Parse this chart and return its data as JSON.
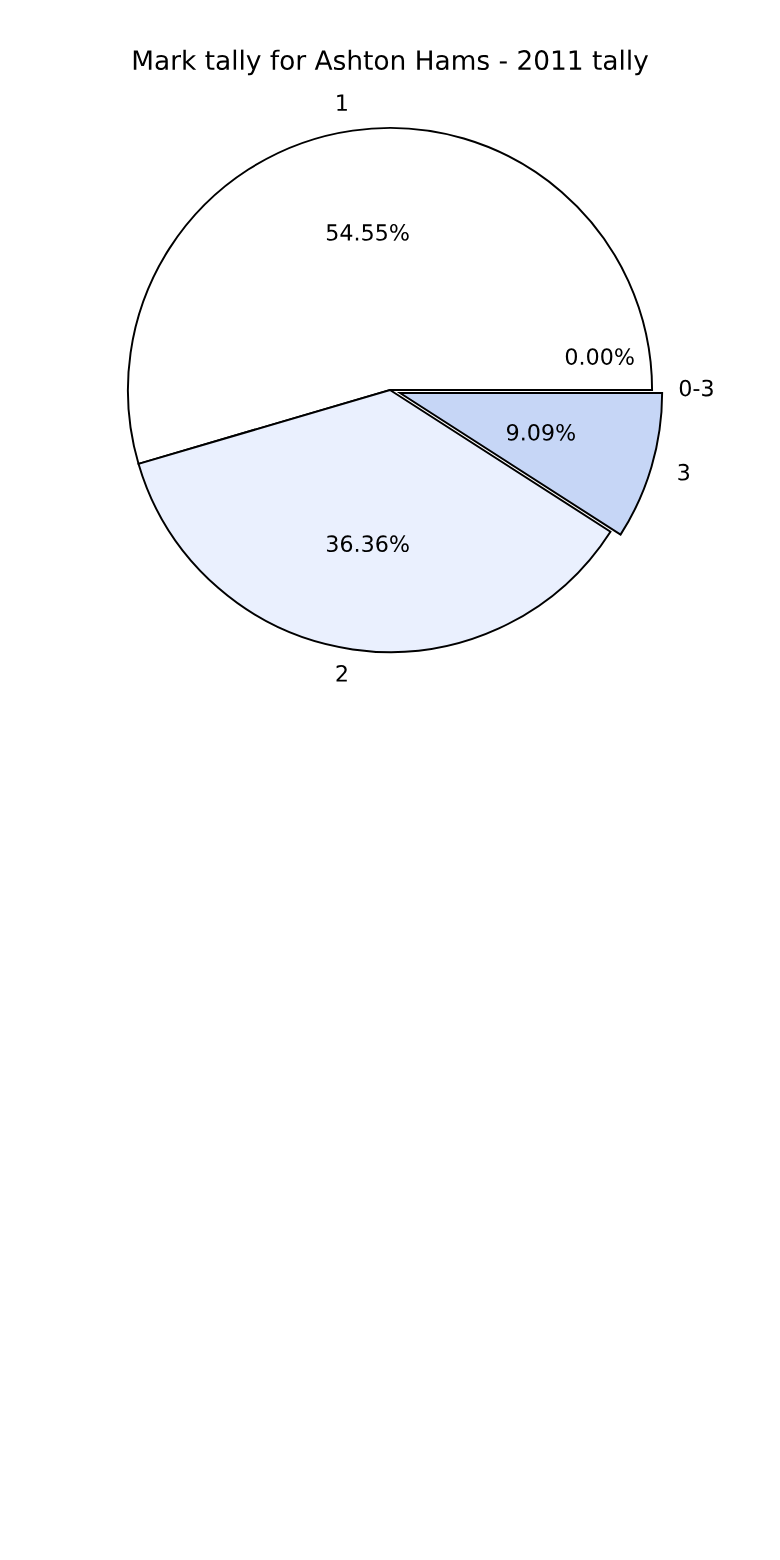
{
  "chart_data": {
    "type": "pie",
    "title": "Mark tally for Ashton Hams - 2011 tally",
    "categories": [
      "0-3",
      "1",
      "2",
      "3"
    ],
    "values": [
      0,
      54.55,
      36.36,
      9.09
    ],
    "value_labels": [
      "0.00%",
      "54.55%",
      "36.36%",
      "9.09%"
    ],
    "colors": [
      "#ffffff",
      "#ffffff",
      "#eaf0fe",
      "#c6d6f6"
    ],
    "legend": false
  }
}
